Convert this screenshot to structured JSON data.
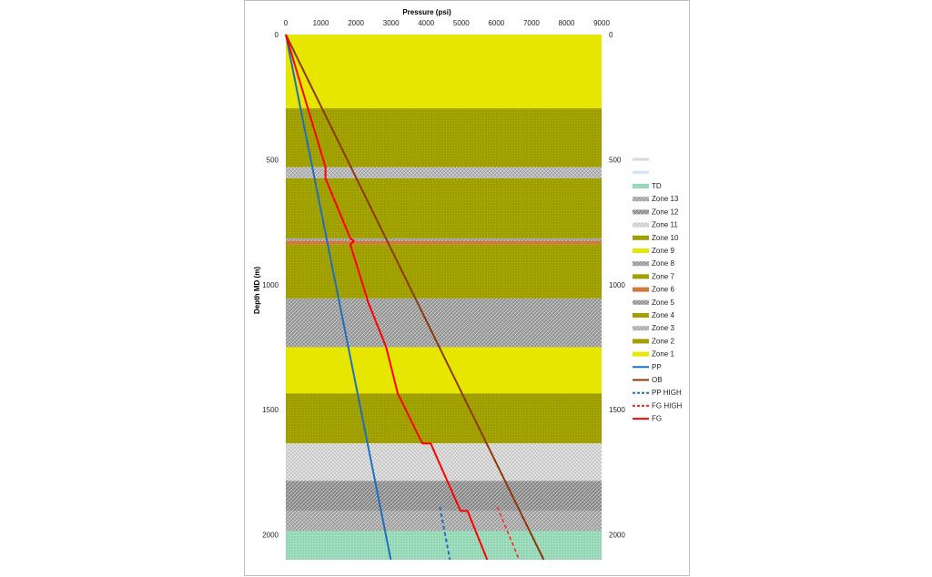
{
  "chart_data": {
    "type": "line",
    "xlabel": "Pressure (psi)",
    "ylabel": "Depth MD (m)",
    "xlim": [
      0,
      9000
    ],
    "ylim": [
      0,
      2100
    ],
    "x_ticks": [
      "0",
      "1000",
      "2000",
      "3000",
      "4000",
      "5000",
      "6000",
      "7000",
      "8000",
      "9000"
    ],
    "y_ticks": [
      "0",
      "500",
      "1000",
      "1500",
      "2000"
    ],
    "zones": [
      {
        "name": "Zone 1",
        "top": 0,
        "bottom": 295,
        "color": "#e6e600",
        "pattern": "solid"
      },
      {
        "name": "Zone 2",
        "top": 295,
        "bottom": 530,
        "color": "#a6a600",
        "pattern": "dots"
      },
      {
        "name": "Zone 3",
        "top": 530,
        "bottom": 575,
        "color": "#b3b3b3",
        "pattern": "hatch"
      },
      {
        "name": "Zone 4",
        "top": 575,
        "bottom": 815,
        "color": "#a6a600",
        "pattern": "dots"
      },
      {
        "name": "Zone 5",
        "top": 815,
        "bottom": 825,
        "color": "#9a9a9a",
        "pattern": "hatch"
      },
      {
        "name": "Zone 6",
        "top": 825,
        "bottom": 840,
        "color": "#d07a3a",
        "pattern": "solid"
      },
      {
        "name": "Zone 7",
        "top": 840,
        "bottom": 1055,
        "color": "#a6a600",
        "pattern": "dots"
      },
      {
        "name": "Zone 8",
        "top": 1055,
        "bottom": 1250,
        "color": "#9c9c9c",
        "pattern": "hatch"
      },
      {
        "name": "Zone 9",
        "top": 1250,
        "bottom": 1435,
        "color": "#e6e600",
        "pattern": "solid"
      },
      {
        "name": "Zone 10",
        "top": 1435,
        "bottom": 1635,
        "color": "#a6a600",
        "pattern": "dots"
      },
      {
        "name": "Zone 11",
        "top": 1635,
        "bottom": 1785,
        "color": "#d6d6d6",
        "pattern": "hatch"
      },
      {
        "name": "Zone 12",
        "top": 1785,
        "bottom": 1905,
        "color": "#8e8e8e",
        "pattern": "hatch"
      },
      {
        "name": "Zone 13",
        "top": 1905,
        "bottom": 1985,
        "color": "#a8a8a8",
        "pattern": "hatch"
      },
      {
        "name": "TD",
        "top": 1985,
        "bottom": 2100,
        "color": "#9fe0c0",
        "pattern": "dots"
      }
    ],
    "series": [
      {
        "name": "PP",
        "color": "#1f6fbf",
        "dash": "",
        "width": 2,
        "points": [
          [
            0,
            0
          ],
          [
            2993,
            2100
          ]
        ]
      },
      {
        "name": "OB",
        "color": "#8b3a0e",
        "dash": "",
        "width": 2,
        "points": [
          [
            0,
            0
          ],
          [
            7350,
            2100
          ]
        ]
      },
      {
        "name": "PP HIGH",
        "color": "#1f6fbf",
        "dash": "4,3",
        "width": 2,
        "points": [
          [
            4390,
            1890
          ],
          [
            4680,
            2100
          ]
        ]
      },
      {
        "name": "FG HIGH",
        "color": "#ff2020",
        "dash": "4,3",
        "width": 1.5,
        "points": [
          [
            6030,
            1890
          ],
          [
            6650,
            2100
          ]
        ]
      },
      {
        "name": "FG",
        "color": "#ff0000",
        "dash": "",
        "width": 2,
        "points": [
          [
            0,
            0
          ],
          [
            1130,
            530
          ],
          [
            1130,
            575
          ],
          [
            1840,
            815
          ],
          [
            1940,
            825
          ],
          [
            1840,
            840
          ],
          [
            2320,
            1055
          ],
          [
            2320,
            1060
          ],
          [
            2860,
            1250
          ],
          [
            3190,
            1435
          ],
          [
            3890,
            1635
          ],
          [
            4130,
            1635
          ],
          [
            4980,
            1905
          ],
          [
            5180,
            1905
          ],
          [
            5740,
            2100
          ]
        ]
      }
    ],
    "legend": {
      "placement": "right",
      "entries": [
        "TD",
        "Zone 13",
        "Zone 12",
        "Zone 11",
        "Zone 10",
        "Zone 9",
        "Zone 8",
        "Zone 7",
        "Zone 6",
        "Zone 5",
        "Zone 4",
        "Zone 3",
        "Zone 2",
        "Zone 1",
        "PP",
        "OB",
        "PP HIGH",
        "FG HIGH",
        "FG"
      ]
    },
    "grid": false
  }
}
